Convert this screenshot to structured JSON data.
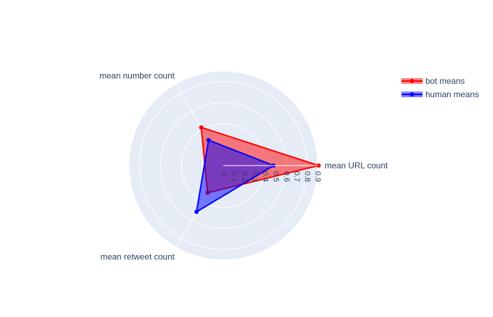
{
  "chart_data": {
    "type": "radar",
    "categories": [
      "mean URL count",
      "mean number count",
      "mean retweet count"
    ],
    "radial_ticks": [
      "0",
      "0.1",
      "0.2",
      "0.3",
      "0.4",
      "0.5",
      "0.6",
      "0.7",
      "0.8",
      "0.9"
    ],
    "radial_range": [
      0,
      0.9
    ],
    "grid": true,
    "legend_position": "top-right",
    "series": [
      {
        "name": "bot means",
        "values": [
          0.91,
          0.42,
          0.3
        ],
        "color": "#ff0000"
      },
      {
        "name": "human means",
        "values": [
          0.48,
          0.28,
          0.51
        ],
        "color": "#0000ff"
      }
    ]
  }
}
